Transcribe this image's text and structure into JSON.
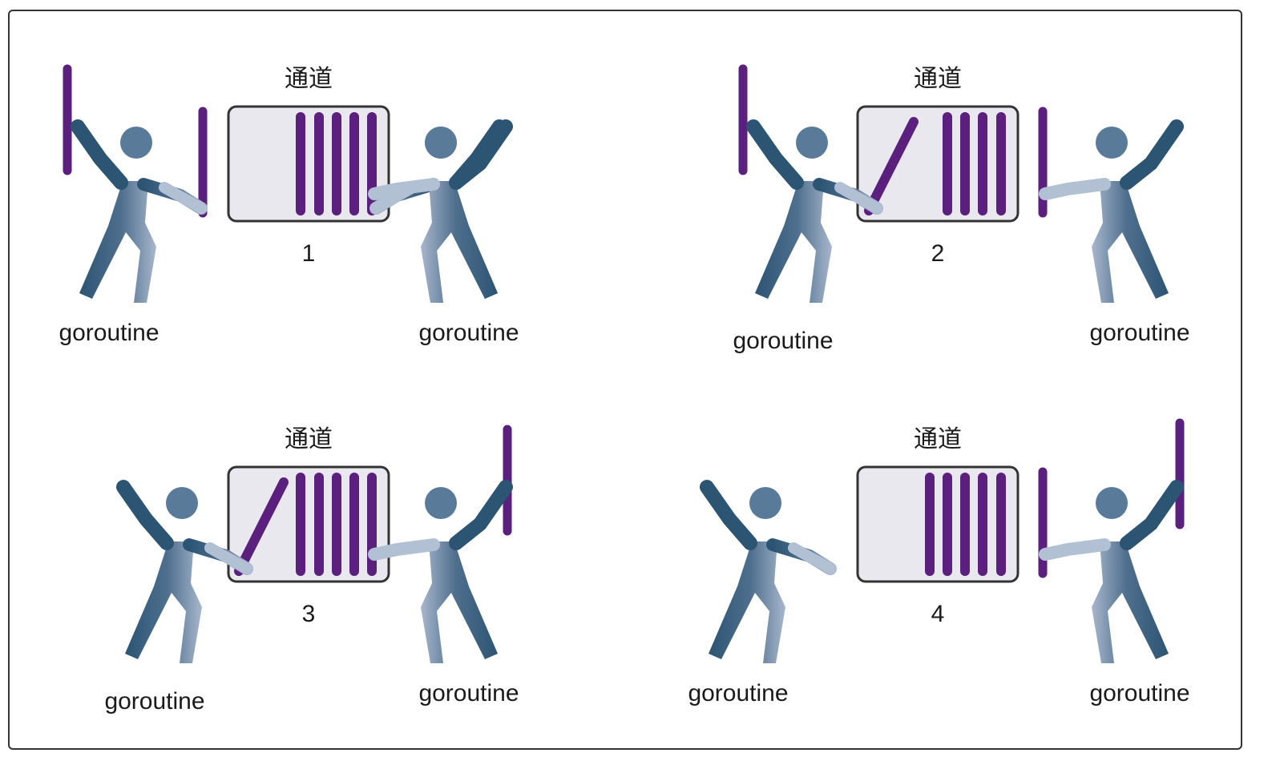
{
  "diagram": {
    "scenes": [
      {
        "channel_label": "通道",
        "step": "1",
        "left_label": "goroutine",
        "right_label": "goroutine"
      },
      {
        "channel_label": "通道",
        "step": "2",
        "left_label": "goroutine",
        "right_label": "goroutine"
      },
      {
        "channel_label": "通道",
        "step": "3",
        "left_label": "goroutine",
        "right_label": "goroutine"
      },
      {
        "channel_label": "通道",
        "step": "4",
        "left_label": "goroutine",
        "right_label": "goroutine"
      }
    ]
  },
  "colors": {
    "figure_dark": "#2d5574",
    "figure_light": "#8fa3bd",
    "bar": "#5b1f7e",
    "box_fill": "#e8e8ee",
    "box_stroke": "#333333"
  }
}
